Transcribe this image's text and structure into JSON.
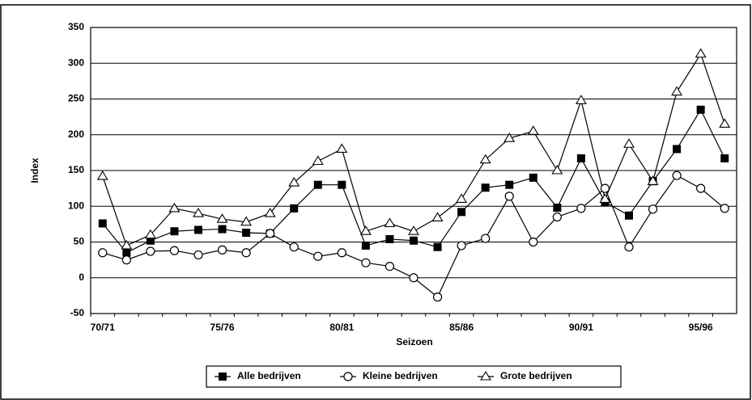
{
  "chart_data": {
    "type": "line",
    "x_label": "Seizoen",
    "y_label": "Index",
    "categories": [
      "70/71",
      null,
      null,
      null,
      null,
      "75/76",
      null,
      null,
      null,
      null,
      "80/81",
      null,
      null,
      null,
      null,
      "85/86",
      null,
      null,
      null,
      null,
      "90/91",
      null,
      null,
      null,
      null,
      "95/96",
      null
    ],
    "series": [
      {
        "name": "Alle bedrijven",
        "color": "#000000",
        "marker": "square",
        "values": [
          76,
          35,
          52,
          65,
          67,
          68,
          63,
          62,
          97,
          130,
          130,
          45,
          54,
          52,
          43,
          92,
          126,
          130,
          140,
          98,
          167,
          106,
          87,
          135,
          180,
          235,
          167
        ]
      },
      {
        "name": "Kleine bedrijven",
        "color": "#000000",
        "marker": "circle",
        "values": [
          35,
          25,
          37,
          38,
          32,
          39,
          35,
          62,
          43,
          30,
          35,
          21,
          16,
          0,
          -27,
          45,
          55,
          114,
          50,
          85,
          97,
          125,
          43,
          96,
          143,
          125,
          97
        ]
      },
      {
        "name": "Grote bedrijven",
        "color": "#000000",
        "marker": "triangle",
        "values": [
          142,
          45,
          60,
          97,
          90,
          82,
          78,
          90,
          133,
          163,
          180,
          65,
          76,
          65,
          84,
          110,
          165,
          195,
          205,
          150,
          248,
          110,
          187,
          135,
          260,
          313,
          215
        ]
      }
    ],
    "ylim": [
      -50,
      350
    ],
    "yticks": [
      -50,
      0,
      50,
      100,
      150,
      200,
      250,
      300,
      350
    ],
    "grid": true,
    "legend": "bottom"
  }
}
